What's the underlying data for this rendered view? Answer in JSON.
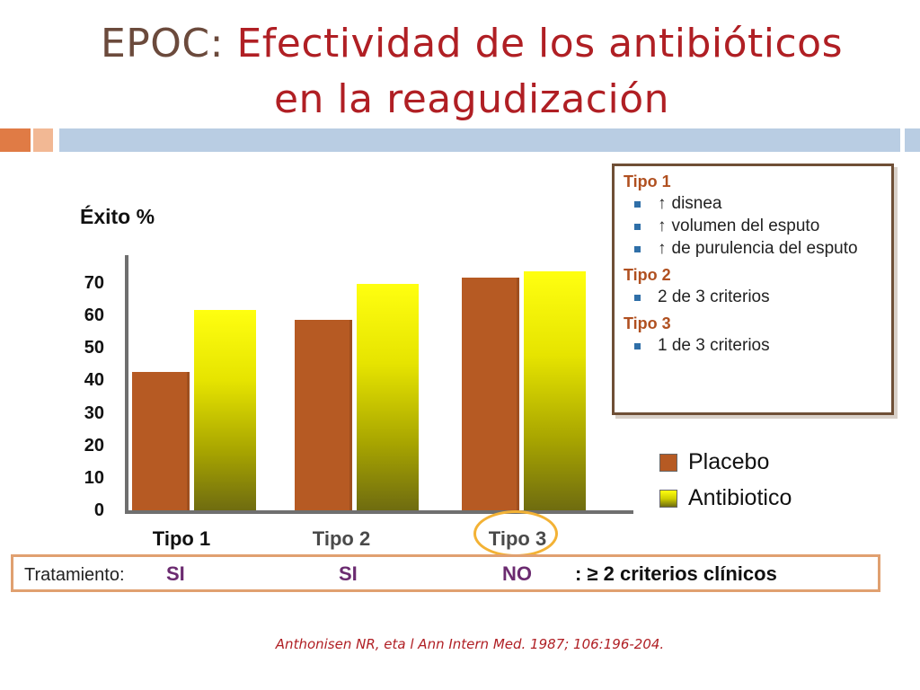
{
  "title": {
    "prefix": "EPOC:",
    "line1": "Efectividad de los antibióticos",
    "line2": "en la reagudización"
  },
  "colors": {
    "placebo": "#b65a23",
    "antibiotico_top": "#ffff10",
    "antibiotico_bottom": "#6e6b10",
    "title_red": "#b01f24",
    "accent_blue": "#b9cde3",
    "accent_orange": "#e07b45"
  },
  "chart_data": {
    "type": "bar",
    "ylabel": "Éxito %",
    "ylim": [
      0,
      70
    ],
    "yticks": [
      "70",
      "60",
      "50",
      "40",
      "30",
      "20",
      "10",
      "0"
    ],
    "categories": [
      "Tipo 1",
      "Tipo 2",
      "Tipo 3"
    ],
    "series": [
      {
        "name": "Placebo",
        "values": [
          43,
          59,
          72
        ]
      },
      {
        "name": "Antibiotico",
        "values": [
          62,
          70,
          74
        ]
      }
    ],
    "legend": {
      "position": "right",
      "labels": [
        "Placebo",
        "Antibiotico"
      ]
    }
  },
  "infobox": {
    "groups": [
      {
        "head": "Tipo 1",
        "items": [
          {
            "arrow": "↑",
            "text": "disnea"
          },
          {
            "arrow": "↑",
            "text": "volumen del esputo"
          },
          {
            "arrow": "↑",
            "text": "de purulencia del esputo"
          }
        ]
      },
      {
        "head": "Tipo 2",
        "items": [
          {
            "arrow": "",
            "text": "2 de 3 criterios"
          }
        ]
      },
      {
        "head": "Tipo 3",
        "items": [
          {
            "arrow": "",
            "text": "1 de 3 criterios"
          }
        ]
      }
    ]
  },
  "treatment": {
    "label": "Tratamiento:",
    "values": [
      "SI",
      "SI",
      "NO"
    ],
    "criteria": ": ≥ 2 criterios clínicos"
  },
  "citation": "Anthonisen NR, eta l Ann Intern Med. 1987; 106:196-204."
}
